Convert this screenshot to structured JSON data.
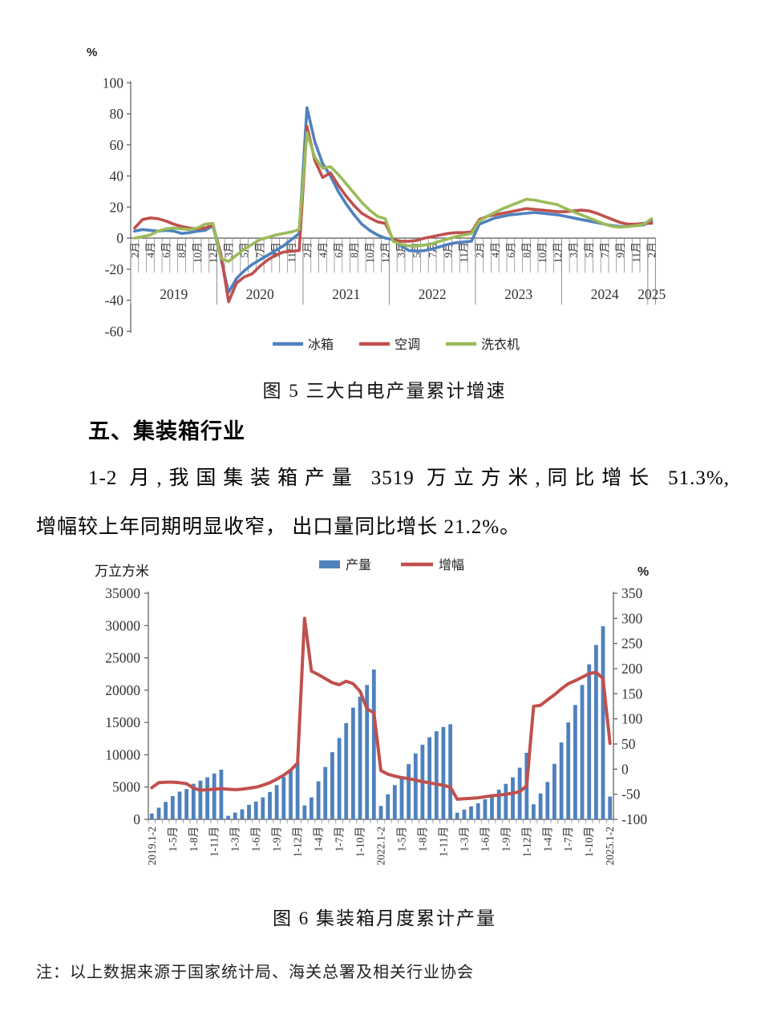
{
  "page": {
    "fig5_caption": "图 5 三大白电产量累计增速",
    "section_heading": "五、集装箱行业",
    "para_line1": "1-2 月,我国集装箱产量 3519 万立方米,同比增长 51.3%,",
    "para_line2": "增幅较上年同期明显收窄， 出口量同比增长 21.2%。",
    "fig6_caption": "图 6 集装箱月度累计产量",
    "note": "注：以上数据来源于国家统计局、海关总署及相关行业协会"
  },
  "colors": {
    "blue": "#4f81bd",
    "red": "#c0504d",
    "green": "#9bbb59",
    "axis": "#595959",
    "tick_text": "#333333"
  },
  "chart_data": [
    {
      "id": "fig5",
      "type": "line",
      "title": "图 5 三大白电产量累计增速",
      "y_axis_label": "%",
      "ylim": [
        -60,
        100
      ],
      "y_ticks": [
        100,
        80,
        60,
        40,
        20,
        0,
        -20,
        -40,
        -60
      ],
      "grid": false,
      "legend_position": "bottom",
      "x_note": "monthly cumulative points, months 2-12 of 2019-2024 plus Feb 2025; every 2nd point labeled",
      "tick_every": 2,
      "x_tick_labels": [
        "2月",
        "4月",
        "6月",
        "8月",
        "10月",
        "12月",
        "3月",
        "5月",
        "7月",
        "9月",
        "11月",
        "2月",
        "4月",
        "6月",
        "8月",
        "10月",
        "12月",
        "3月",
        "5月",
        "7月",
        "9月",
        "11月",
        "2月",
        "4月",
        "6月",
        "8月",
        "10月",
        "12月",
        "3月",
        "5月",
        "7月",
        "9月",
        "11月",
        "2月"
      ],
      "year_labels": [
        "2019",
        "2020",
        "2021",
        "2022",
        "2023",
        "2024",
        "2025"
      ],
      "points_per_year": 11,
      "series": [
        {
          "key": "fridge",
          "name": "冰箱",
          "color": "#4f81bd",
          "values": [
            4.5,
            5.5,
            5,
            4.5,
            5,
            4.5,
            3,
            3.5,
            4.5,
            5,
            8,
            -13,
            -35,
            -26,
            -21,
            -17,
            -14,
            -11,
            -8,
            -5,
            -1,
            3,
            84,
            62,
            48,
            40,
            30,
            22,
            15,
            9,
            5,
            2,
            0,
            -1,
            -5,
            -8,
            -8.5,
            -8,
            -7,
            -5.5,
            -4,
            -3,
            -2.5,
            -2,
            9,
            11,
            13,
            14,
            15,
            15.5,
            16,
            16.5,
            16,
            15.5,
            15,
            14,
            13,
            12,
            11,
            10,
            9,
            8,
            7.5,
            7.5,
            8,
            8.5,
            11
          ]
        },
        {
          "key": "aircon",
          "name": "空调",
          "color": "#c0504d",
          "values": [
            6.5,
            12,
            13,
            12.5,
            11,
            9,
            7.5,
            6.5,
            6,
            6.5,
            8.5,
            -10,
            -41,
            -29,
            -25,
            -23,
            -18,
            -14,
            -11,
            -9,
            -8.5,
            -8,
            72,
            50,
            39,
            42,
            34,
            27,
            21,
            16,
            13,
            10.5,
            9.5,
            -1,
            -2,
            -2,
            -1.5,
            0,
            1,
            2,
            3,
            3.5,
            3.5,
            4,
            12,
            14,
            15,
            16,
            17,
            18,
            19,
            18.5,
            18,
            17.5,
            17,
            17,
            17.5,
            18,
            17.5,
            16,
            14,
            12,
            10,
            9,
            9,
            9.5,
            9.5
          ]
        },
        {
          "key": "washer",
          "name": "洗衣机",
          "color": "#9bbb59",
          "values": [
            0,
            1,
            2,
            4.5,
            6,
            6.5,
            6,
            5.5,
            6.5,
            9,
            9.5,
            -13,
            -15,
            -11,
            -7,
            -4,
            -1,
            0.5,
            2,
            3,
            4,
            5.5,
            68,
            52,
            45,
            46,
            41,
            35,
            29,
            23,
            18,
            14,
            12.5,
            -2,
            -4,
            -5,
            -5,
            -4.5,
            -3.5,
            -2,
            -0.5,
            1,
            2,
            3,
            11,
            14,
            16.5,
            19,
            21,
            23,
            25,
            24.5,
            23.5,
            22.5,
            21.5,
            19,
            17,
            15,
            13,
            11,
            9,
            7.5,
            7,
            7.5,
            8,
            9,
            12.5
          ]
        }
      ]
    },
    {
      "id": "fig6",
      "type": "bar",
      "title": "图 6 集装箱月度累计产量",
      "left_axis_label": "万立方米",
      "right_axis_label": "%",
      "left_ylim": [
        0,
        35000
      ],
      "left_ticks": [
        35000,
        30000,
        25000,
        20000,
        15000,
        10000,
        5000,
        0
      ],
      "right_ylim": [
        -100,
        350
      ],
      "right_ticks": [
        350,
        300,
        250,
        200,
        150,
        100,
        50,
        0,
        -50,
        -100
      ],
      "grid": false,
      "legend_position": "top",
      "x_note": "cumulative monthly points 1-2月 … 1-12月 for 2019-2024 plus 2025.1-2; every 3rd point labeled",
      "tick_every": 3,
      "x_tick_labels": [
        "2019.1-2",
        "1-5月",
        "1-8月",
        "1-11月",
        "1-3月",
        "1-6月",
        "1-9月",
        "1-12月",
        "1-4月",
        "1-7月",
        "1-10月",
        "2022.1-2",
        "1-5月",
        "1-8月",
        "1-11月",
        "1-3月",
        "1-6月",
        "1-9月",
        "1-12月",
        "1-4月",
        "1-7月",
        "1-10月",
        "2025.1-2"
      ],
      "series": [
        {
          "key": "production",
          "name": "产量",
          "type": "bar",
          "axis": "left",
          "color": "#4f81bd",
          "values": [
            900,
            1800,
            2700,
            3600,
            4300,
            4700,
            5500,
            6000,
            6500,
            7100,
            7700,
            540,
            1050,
            1550,
            2250,
            2750,
            3400,
            4250,
            5300,
            6550,
            7800,
            8800,
            2160,
            3400,
            5900,
            8100,
            10400,
            12600,
            14900,
            17300,
            19000,
            20800,
            23200,
            2090,
            3880,
            5300,
            6680,
            8550,
            10220,
            11550,
            12720,
            13640,
            14300,
            14720,
            1030,
            1500,
            2000,
            2500,
            3100,
            3800,
            4600,
            5500,
            6500,
            8000,
            10300,
            2330,
            4000,
            5800,
            8600,
            11900,
            15000,
            17700,
            20800,
            24000,
            27000,
            29900,
            3519
          ]
        },
        {
          "key": "growth",
          "name": "增幅",
          "type": "line",
          "axis": "right",
          "color": "#c0504d",
          "values": [
            -37,
            -27,
            -26,
            -26,
            -27,
            -29,
            -38,
            -42,
            -41,
            -40,
            -39,
            -40,
            -41,
            -40,
            -38,
            -36,
            -32,
            -27,
            -20,
            -12,
            -2,
            12,
            300,
            195,
            188,
            180,
            172,
            168,
            175,
            170,
            155,
            120,
            112,
            -3,
            -10,
            -14,
            -17,
            -19,
            -22,
            -25,
            -27,
            -30,
            -32,
            -36,
            -60,
            -59,
            -58,
            -57,
            -55,
            -53,
            -52,
            -50,
            -48,
            -45,
            -33,
            125,
            127,
            138,
            148,
            160,
            170,
            176,
            183,
            190,
            193,
            180,
            51.3
          ]
        }
      ]
    }
  ]
}
